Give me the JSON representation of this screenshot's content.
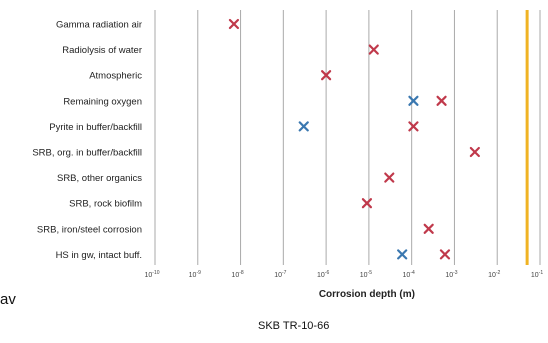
{
  "footer": {
    "left_text": "av",
    "center_text": "SKB TR-10-66"
  },
  "colors": {
    "red_marker": "#c0394b",
    "blue_marker": "#3b78b0",
    "limit_line": "#f0b323",
    "grid": "#aaaaaa"
  },
  "chart_data": {
    "type": "scatter",
    "orientation": "horizontal",
    "xlabel": "Corrosion depth (m)",
    "ylabel": "",
    "xscale": "log",
    "xlim": [
      1e-10,
      0.1
    ],
    "x_tick_labels": [
      "10-10",
      "10-9",
      "10-8",
      "10-7",
      "10-6",
      "10-5",
      "10-4",
      "10-3",
      "10-2",
      "10-1"
    ],
    "x_ticks": [
      1e-10,
      1e-09,
      1e-08,
      1e-07,
      1e-06,
      1e-05,
      0.0001,
      0.001,
      0.01,
      0.1
    ],
    "grid": "vertical",
    "categories": [
      "Gamma radiation air",
      "Radiolysis of water",
      "Atmospheric",
      "Remaining oxygen",
      "Pyrite in buffer/backfill",
      "SRB, org. in buffer/backfill",
      "SRB, other organics",
      "SRB, rock biofilm",
      "SRB, iron/steel corrosion",
      "HS in gw, intact buff."
    ],
    "series": [
      {
        "color": "red",
        "points": [
          {
            "category": "Gamma radiation air",
            "x": 7e-09
          },
          {
            "category": "Radiolysis of water",
            "x": 1.3e-05
          },
          {
            "category": "Atmospheric",
            "x": 1e-06
          },
          {
            "category": "Remaining oxygen",
            "x": 0.0005
          },
          {
            "category": "Pyrite in buffer/backfill",
            "x": 0.00011
          },
          {
            "category": "SRB, org. in buffer/backfill",
            "x": 0.003
          },
          {
            "category": "SRB, other organics",
            "x": 3e-05
          },
          {
            "category": "SRB, rock biofilm",
            "x": 9e-06
          },
          {
            "category": "SRB, iron/steel corrosion",
            "x": 0.00025
          },
          {
            "category": "HS in gw, intact buff.",
            "x": 0.0006
          }
        ]
      },
      {
        "color": "blue",
        "points": [
          {
            "category": "Remaining oxygen",
            "x": 0.00011
          },
          {
            "category": "Pyrite in buffer/backfill",
            "x": 3e-07
          },
          {
            "category": "HS in gw, intact buff.",
            "x": 6e-05
          }
        ]
      }
    ],
    "reference_line": {
      "x": 0.05,
      "color": "#f0b323"
    }
  }
}
